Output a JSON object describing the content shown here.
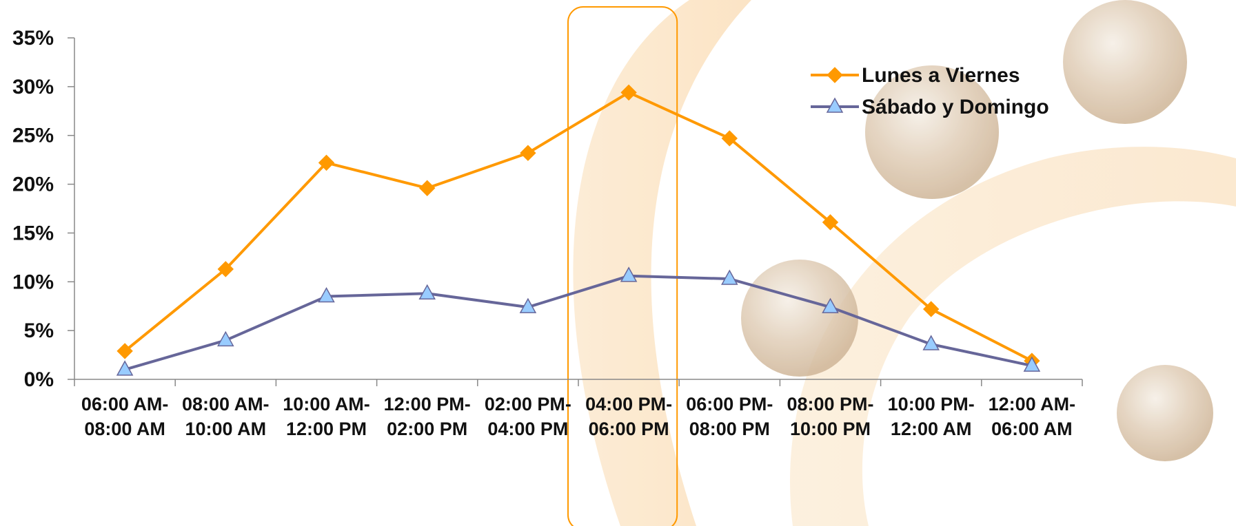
{
  "chart_data": {
    "type": "line",
    "categories": [
      [
        "06:00 AM-",
        "08:00 AM"
      ],
      [
        "08:00 AM-",
        "10:00 AM"
      ],
      [
        "10:00 AM-",
        "12:00 PM"
      ],
      [
        "12:00 PM-",
        "02:00 PM"
      ],
      [
        "02:00 PM-",
        "04:00 PM"
      ],
      [
        "04:00 PM-",
        "06:00 PM"
      ],
      [
        "06:00 PM-",
        "08:00 PM"
      ],
      [
        "08:00 PM-",
        "10:00 PM"
      ],
      [
        "10:00 PM-",
        "12:00 AM"
      ],
      [
        "12:00 AM-",
        "06:00 AM"
      ]
    ],
    "series": [
      {
        "name": "Lunes a Viernes",
        "color": "#FF9900",
        "marker": "diamond",
        "values": [
          2.9,
          11.3,
          22.2,
          19.6,
          23.2,
          29.4,
          24.7,
          16.1,
          7.2,
          1.9
        ]
      },
      {
        "name": "Sábado y Domingo",
        "color": "#666699",
        "marker_fill": "#99CCFF",
        "marker": "triangle",
        "values": [
          1.0,
          4.0,
          8.5,
          8.8,
          7.4,
          10.6,
          10.3,
          7.4,
          3.6,
          1.4
        ]
      }
    ],
    "y_ticks": [
      "0%",
      "5%",
      "10%",
      "15%",
      "20%",
      "25%",
      "30%",
      "35%"
    ],
    "ylim": [
      0,
      35
    ],
    "legend_position": "top-right",
    "highlight_category_index": 5,
    "highlight_color": "#FF9900",
    "grid": false
  }
}
